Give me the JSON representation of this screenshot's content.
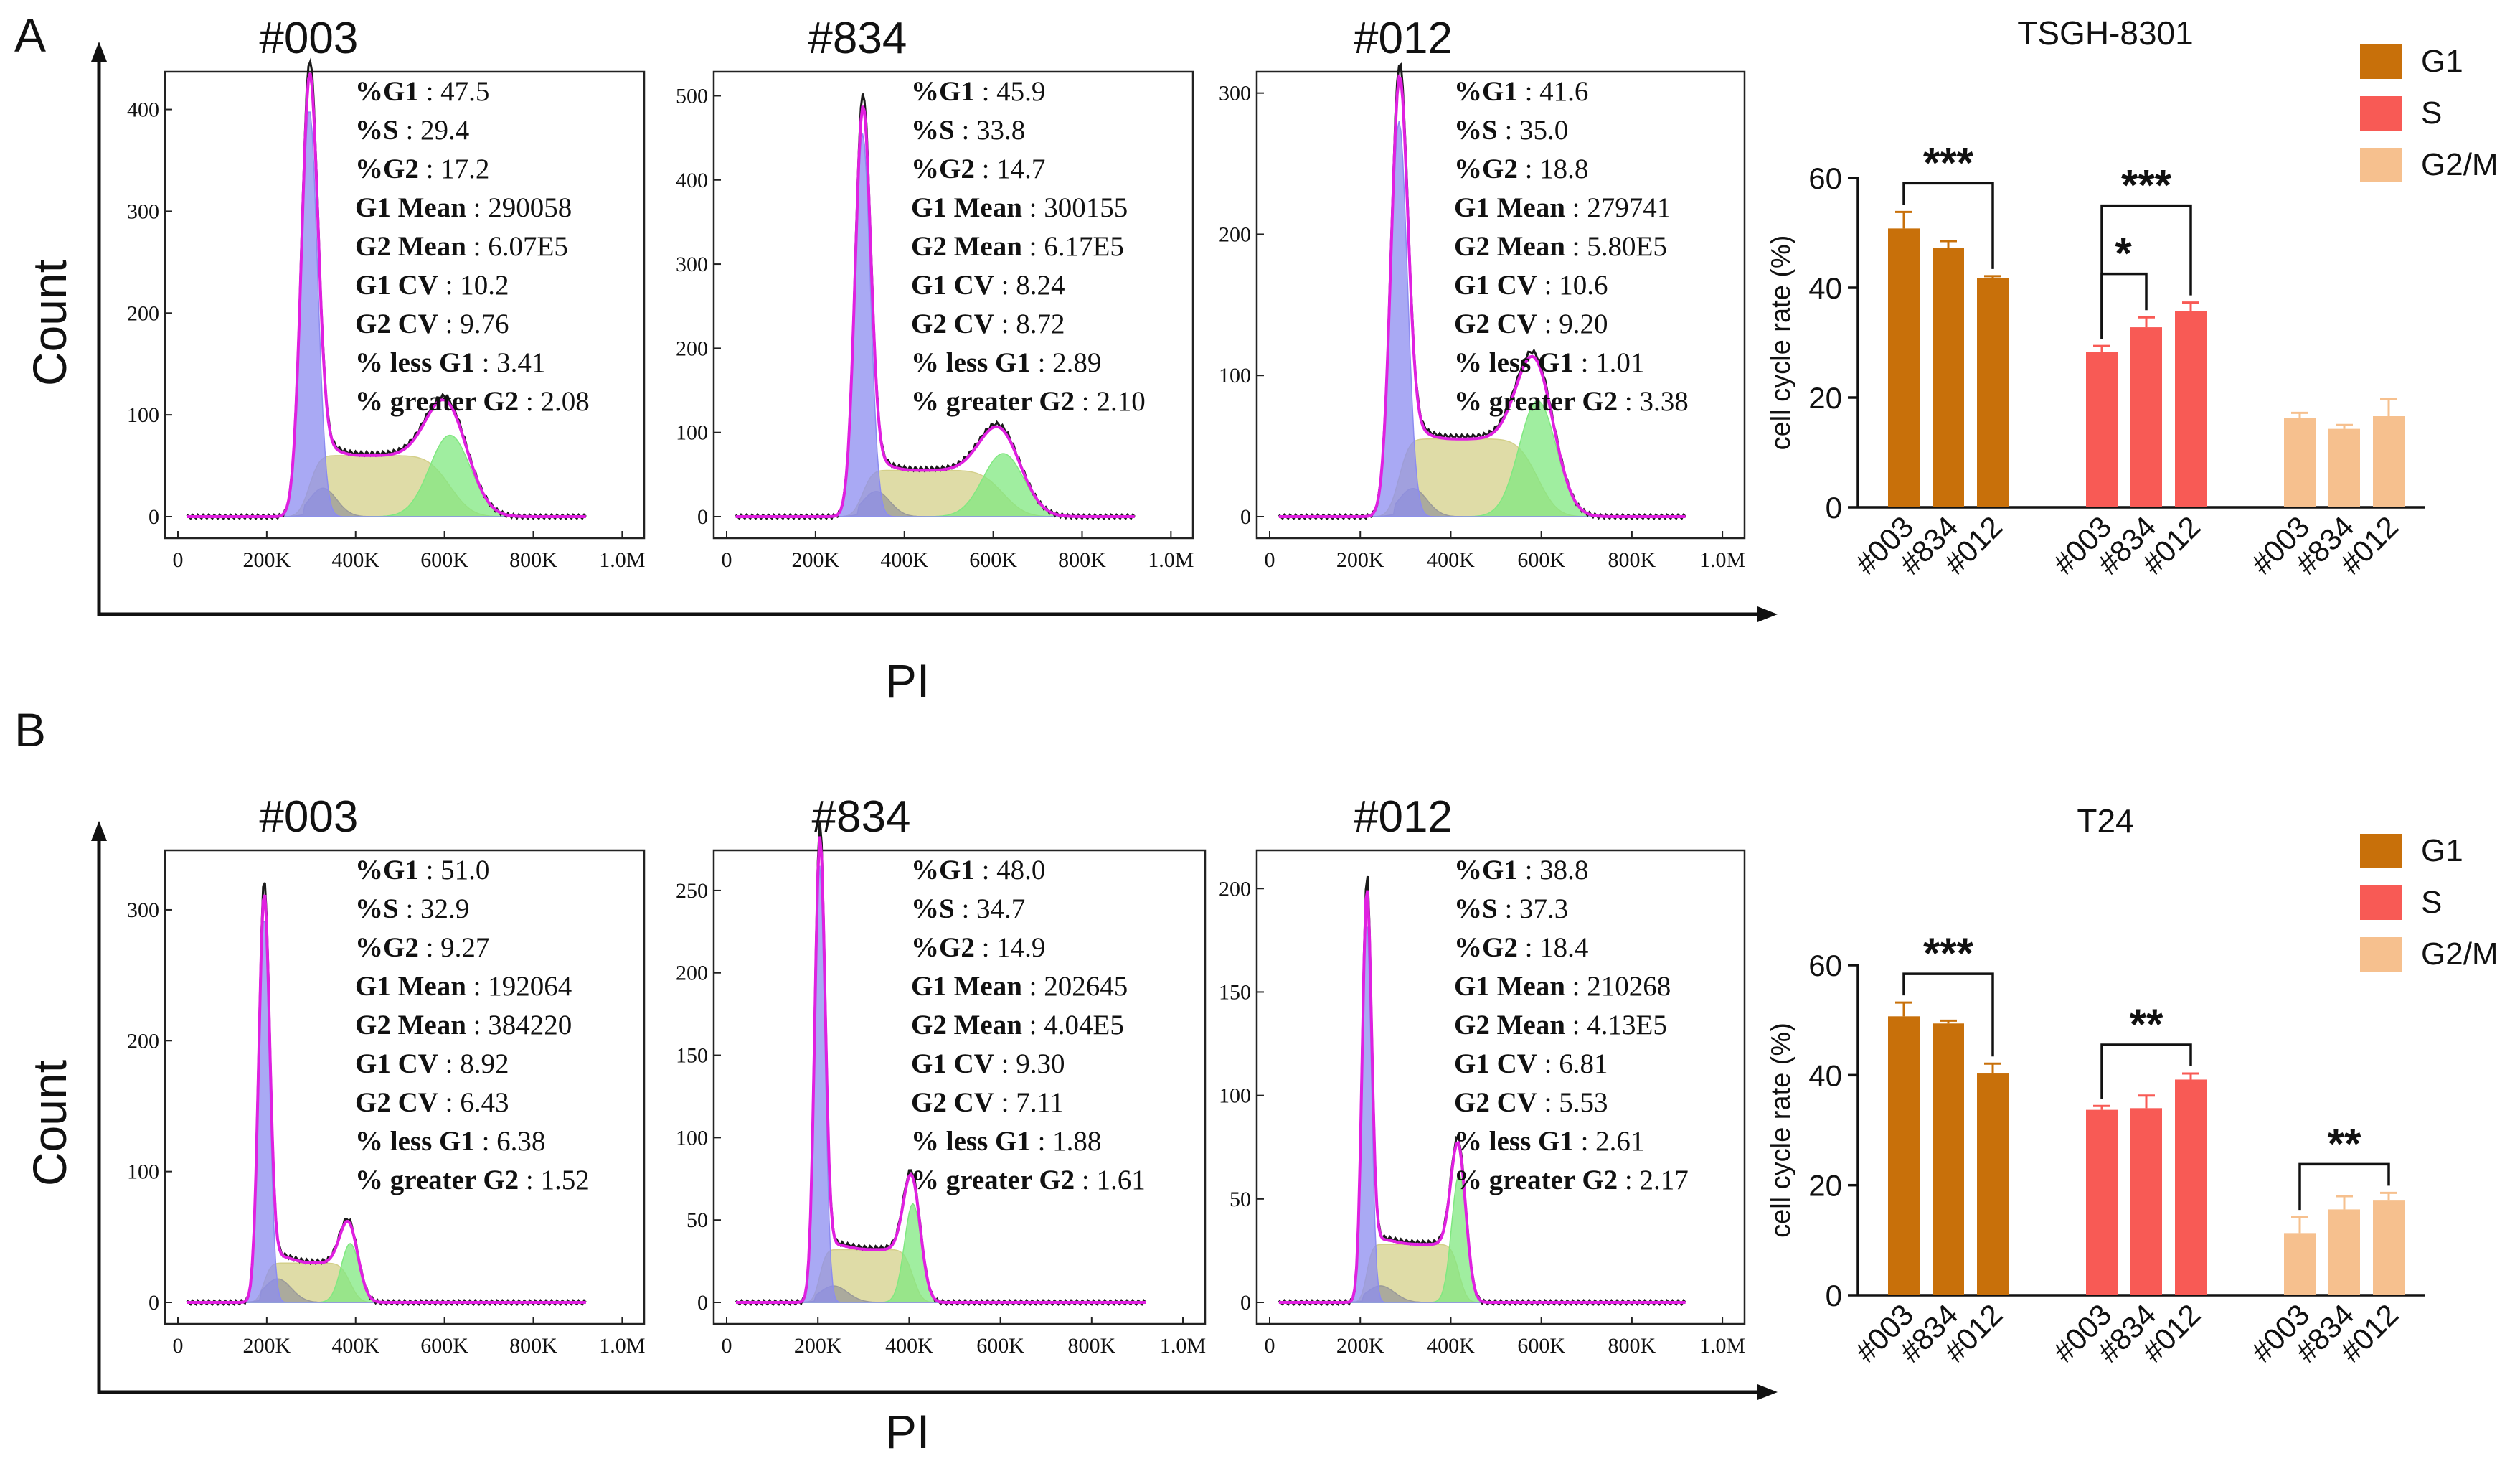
{
  "colors": {
    "g1": "#c8700a",
    "s": "#f85a55",
    "g2m": "#f6c08e",
    "hist_outline": "#1a1a1a",
    "fit_line": "#e020e0",
    "g1_fill": "#8c8cf0",
    "s_fill": "#d4d08a",
    "g2_fill": "#80e880",
    "debris_fill": "#9a9a9a"
  },
  "panels": [
    {
      "letter": "A",
      "ylabel": "Count",
      "xlabel": "PI",
      "histograms": [
        {
          "title": "#003",
          "yticks": [
            "0",
            "100",
            "200",
            "300",
            "400"
          ],
          "ymax": 430,
          "xticks": [
            "0",
            "200K",
            "400K",
            "600K",
            "800K",
            "1.0M"
          ],
          "model": {
            "g1_pos": 0.29,
            "g1_peak": 400,
            "g1_sd": 0.018,
            "g2_pos": 0.6,
            "g2_peak": 80,
            "g2_sd": 0.045,
            "s_level": 60,
            "debris": 28
          },
          "stats": [
            {
              "label": "%G1",
              "value": " : 47.5"
            },
            {
              "label": "%S",
              "value": " : 29.4"
            },
            {
              "label": "%G2",
              "value": " : 17.2"
            },
            {
              "label": "G1 Mean",
              "value": " : 290058"
            },
            {
              "label": "G2 Mean",
              "value": " : 6.07E5"
            },
            {
              "label": "G1 CV",
              "value": " : 10.2"
            },
            {
              "label": "G2 CV",
              "value": " : 9.76"
            },
            {
              "label": "% less G1",
              "value": " : 3.41"
            },
            {
              "label": "% greater G2",
              "value": " : 2.08"
            }
          ]
        },
        {
          "title": "#834",
          "yticks": [
            "0",
            "100",
            "200",
            "300",
            "400",
            "500"
          ],
          "ymax": 520,
          "xticks": [
            "0",
            "200K",
            "400K",
            "600K",
            "800K",
            "1.0M"
          ],
          "model": {
            "g1_pos": 0.3,
            "g1_peak": 455,
            "g1_sd": 0.017,
            "g2_pos": 0.61,
            "g2_peak": 75,
            "g2_sd": 0.045,
            "s_level": 55,
            "debris": 30
          },
          "stats": [
            {
              "label": "%G1",
              "value": " : 45.9"
            },
            {
              "label": "%S",
              "value": " : 33.8"
            },
            {
              "label": "%G2",
              "value": " : 14.7"
            },
            {
              "label": "G1 Mean",
              "value": " : 300155"
            },
            {
              "label": "G2 Mean",
              "value": " : 6.17E5"
            },
            {
              "label": "G1 CV",
              "value": " : 8.24"
            },
            {
              "label": "G2 CV",
              "value": " : 8.72"
            },
            {
              "label": "% less G1",
              "value": " : 2.89"
            },
            {
              "label": "% greater G2",
              "value": " : 2.10"
            }
          ]
        },
        {
          "title": "#012",
          "yticks": [
            "0",
            "100",
            "200",
            "300"
          ],
          "ymax": 310,
          "xticks": [
            "0",
            "200K",
            "400K",
            "600K",
            "800K",
            "1.0M"
          ],
          "model": {
            "g1_pos": 0.28,
            "g1_peak": 280,
            "g1_sd": 0.018,
            "g2_pos": 0.58,
            "g2_peak": 82,
            "g2_sd": 0.04,
            "s_level": 55,
            "debris": 20
          },
          "stats": [
            {
              "label": "%G1",
              "value": " : 41.6"
            },
            {
              "label": "%S",
              "value": " : 35.0"
            },
            {
              "label": "%G2",
              "value": " : 18.8"
            },
            {
              "label": "G1 Mean",
              "value": " : 279741"
            },
            {
              "label": "G2 Mean",
              "value": " : 5.80E5"
            },
            {
              "label": "G1 CV",
              "value": " : 10.6"
            },
            {
              "label": "G2 CV",
              "value": " : 9.20"
            },
            {
              "label": "% less G1",
              "value": " : 1.01"
            },
            {
              "label": "% greater G2",
              "value": " : 3.38"
            }
          ]
        }
      ]
    },
    {
      "letter": "B",
      "ylabel": "Count",
      "xlabel": "PI",
      "histograms": [
        {
          "title": "#003",
          "yticks": [
            "0",
            "100",
            "200",
            "300"
          ],
          "ymax": 340,
          "xticks": [
            "0",
            "200K",
            "400K",
            "600K",
            "800K",
            "1.0M"
          ],
          "model": {
            "g1_pos": 0.19,
            "g1_peak": 295,
            "g1_sd": 0.012,
            "g2_pos": 0.38,
            "g2_peak": 45,
            "g2_sd": 0.02,
            "s_level": 30,
            "debris": 18
          },
          "stats": [
            {
              "label": "%G1",
              "value": " : 51.0"
            },
            {
              "label": "%S",
              "value": " : 32.9"
            },
            {
              "label": "%G2",
              "value": " : 9.27"
            },
            {
              "label": "G1 Mean",
              "value": " : 192064"
            },
            {
              "label": "G2 Mean",
              "value": " : 384220"
            },
            {
              "label": "G1 CV",
              "value": " : 8.92"
            },
            {
              "label": "G2 CV",
              "value": " : 6.43"
            },
            {
              "label": "% less G1",
              "value": " : 6.38"
            },
            {
              "label": "% greater G2",
              "value": " : 1.52"
            }
          ]
        },
        {
          "title": "#834",
          "yticks": [
            "0",
            "50",
            "100",
            "150",
            "200",
            "250"
          ],
          "ymax": 270,
          "xticks": [
            "0",
            "200K",
            "400K",
            "600K",
            "800K",
            "1.0M"
          ],
          "model": {
            "g1_pos": 0.2,
            "g1_peak": 265,
            "g1_sd": 0.011,
            "g2_pos": 0.4,
            "g2_peak": 60,
            "g2_sd": 0.018,
            "s_level": 32,
            "debris": 10
          },
          "stats": [
            {
              "label": "%G1",
              "value": " : 48.0"
            },
            {
              "label": "%S",
              "value": " : 34.7"
            },
            {
              "label": "%G2",
              "value": " : 14.9"
            },
            {
              "label": "G1 Mean",
              "value": " : 202645"
            },
            {
              "label": "G2 Mean",
              "value": " : 4.04E5"
            },
            {
              "label": "G1 CV",
              "value": " : 9.30"
            },
            {
              "label": "G2 CV",
              "value": " : 7.11"
            },
            {
              "label": "% less G1",
              "value": " : 1.88"
            },
            {
              "label": "% greater G2",
              "value": " : 1.61"
            }
          ]
        },
        {
          "title": "#012",
          "yticks": [
            "0",
            "50",
            "100",
            "150",
            "200"
          ],
          "ymax": 215,
          "xticks": [
            "0",
            "200K",
            "400K",
            "600K",
            "800K",
            "1.0M"
          ],
          "model": {
            "g1_pos": 0.21,
            "g1_peak": 185,
            "g1_sd": 0.01,
            "g2_pos": 0.41,
            "g2_peak": 62,
            "g2_sd": 0.016,
            "s_level": 28,
            "debris": 8
          },
          "stats": [
            {
              "label": "%G1",
              "value": " : 38.8"
            },
            {
              "label": "%S",
              "value": " : 37.3"
            },
            {
              "label": "%G2",
              "value": " : 18.4"
            },
            {
              "label": "G1 Mean",
              "value": " : 210268"
            },
            {
              "label": "G2 Mean",
              "value": " : 4.13E5"
            },
            {
              "label": "G1 CV",
              "value": " : 6.81"
            },
            {
              "label": "G2 CV",
              "value": " : 5.53"
            },
            {
              "label": "% less G1",
              "value": " : 2.61"
            },
            {
              "label": "% greater G2",
              "value": " : 2.17"
            }
          ]
        }
      ]
    }
  ],
  "chart_data": [
    {
      "type": "bar",
      "title": "TSGH-8301",
      "ylabel": "cell cycle rate (%)",
      "xlabel": "",
      "ylim": [
        0,
        60
      ],
      "yticks": [
        "0",
        "20",
        "40",
        "60"
      ],
      "categories": [
        "#003",
        "#834",
        "#012"
      ],
      "series": [
        {
          "name": "G1",
          "values": [
            50.8,
            47.3,
            41.7
          ],
          "errors": [
            3.0,
            1.2,
            0.4
          ]
        },
        {
          "name": "S",
          "values": [
            28.3,
            32.8,
            35.8
          ],
          "errors": [
            1.1,
            1.8,
            1.5
          ]
        },
        {
          "name": "G2/M",
          "values": [
            16.3,
            14.3,
            16.6
          ],
          "errors": [
            0.9,
            0.7,
            3.1
          ]
        }
      ],
      "significance": [
        {
          "series": 0,
          "from": 0,
          "to": 2,
          "label": "***",
          "level": 0
        },
        {
          "series": 1,
          "from": 0,
          "to": 2,
          "label": "***",
          "level": 1
        },
        {
          "series": 1,
          "from": 0,
          "to": 1,
          "label": "*",
          "level": 0
        }
      ],
      "legend": [
        "G1",
        "S",
        "G2/M"
      ]
    },
    {
      "type": "bar",
      "title": "T24",
      "ylabel": "cell cycle rate (%)",
      "xlabel": "",
      "ylim": [
        0,
        60
      ],
      "yticks": [
        "0",
        "20",
        "40",
        "60"
      ],
      "categories": [
        "#003",
        "#834",
        "#012"
      ],
      "series": [
        {
          "name": "G1",
          "values": [
            50.7,
            49.4,
            40.3
          ],
          "errors": [
            2.5,
            0.5,
            1.8
          ]
        },
        {
          "name": "S",
          "values": [
            33.7,
            34.0,
            39.2
          ],
          "errors": [
            0.7,
            2.3,
            1.1
          ]
        },
        {
          "name": "G2/M",
          "values": [
            11.3,
            15.6,
            17.2
          ],
          "errors": [
            2.9,
            2.4,
            1.4
          ]
        }
      ],
      "significance": [
        {
          "series": 0,
          "from": 0,
          "to": 2,
          "label": "***",
          "level": 0
        },
        {
          "series": 1,
          "from": 0,
          "to": 2,
          "label": "**",
          "level": 0
        },
        {
          "series": 2,
          "from": 0,
          "to": 2,
          "label": "**",
          "level": 0
        }
      ],
      "legend": [
        "G1",
        "S",
        "G2/M"
      ]
    }
  ]
}
